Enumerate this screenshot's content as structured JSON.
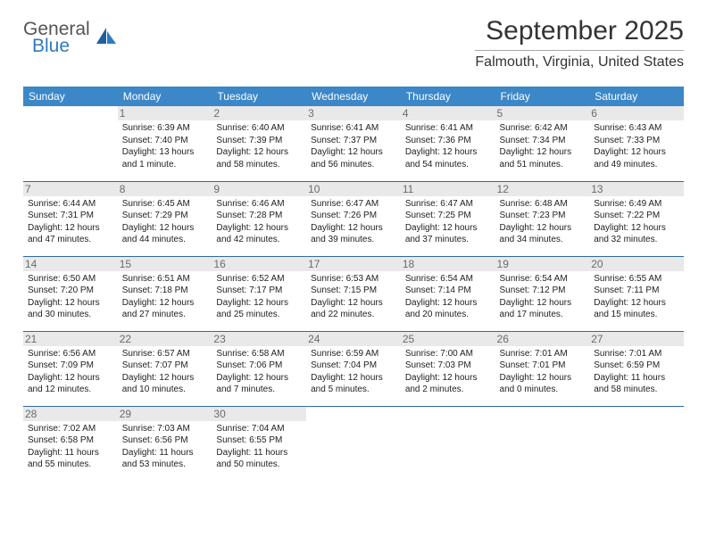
{
  "logo": {
    "general": "General",
    "blue": "Blue"
  },
  "header": {
    "title": "September 2025",
    "location": "Falmouth, Virginia, United States"
  },
  "colors": {
    "header_blue": "#3b87c8",
    "border_blue": "#2f6aa5",
    "daynum_bg": "#e9e9e9",
    "daynum_fg": "#6b6b6b",
    "logo_blue": "#2f7ac0",
    "logo_gray": "#555555"
  },
  "weekdays": [
    "Sunday",
    "Monday",
    "Tuesday",
    "Wednesday",
    "Thursday",
    "Friday",
    "Saturday"
  ],
  "blank_leading": 0,
  "days": [
    {
      "n": "",
      "sunrise": "",
      "sunset": "",
      "daylight": ""
    },
    {
      "n": "1",
      "sunrise": "Sunrise: 6:39 AM",
      "sunset": "Sunset: 7:40 PM",
      "daylight": "Daylight: 13 hours and 1 minute."
    },
    {
      "n": "2",
      "sunrise": "Sunrise: 6:40 AM",
      "sunset": "Sunset: 7:39 PM",
      "daylight": "Daylight: 12 hours and 58 minutes."
    },
    {
      "n": "3",
      "sunrise": "Sunrise: 6:41 AM",
      "sunset": "Sunset: 7:37 PM",
      "daylight": "Daylight: 12 hours and 56 minutes."
    },
    {
      "n": "4",
      "sunrise": "Sunrise: 6:41 AM",
      "sunset": "Sunset: 7:36 PM",
      "daylight": "Daylight: 12 hours and 54 minutes."
    },
    {
      "n": "5",
      "sunrise": "Sunrise: 6:42 AM",
      "sunset": "Sunset: 7:34 PM",
      "daylight": "Daylight: 12 hours and 51 minutes."
    },
    {
      "n": "6",
      "sunrise": "Sunrise: 6:43 AM",
      "sunset": "Sunset: 7:33 PM",
      "daylight": "Daylight: 12 hours and 49 minutes."
    },
    {
      "n": "7",
      "sunrise": "Sunrise: 6:44 AM",
      "sunset": "Sunset: 7:31 PM",
      "daylight": "Daylight: 12 hours and 47 minutes."
    },
    {
      "n": "8",
      "sunrise": "Sunrise: 6:45 AM",
      "sunset": "Sunset: 7:29 PM",
      "daylight": "Daylight: 12 hours and 44 minutes."
    },
    {
      "n": "9",
      "sunrise": "Sunrise: 6:46 AM",
      "sunset": "Sunset: 7:28 PM",
      "daylight": "Daylight: 12 hours and 42 minutes."
    },
    {
      "n": "10",
      "sunrise": "Sunrise: 6:47 AM",
      "sunset": "Sunset: 7:26 PM",
      "daylight": "Daylight: 12 hours and 39 minutes."
    },
    {
      "n": "11",
      "sunrise": "Sunrise: 6:47 AM",
      "sunset": "Sunset: 7:25 PM",
      "daylight": "Daylight: 12 hours and 37 minutes."
    },
    {
      "n": "12",
      "sunrise": "Sunrise: 6:48 AM",
      "sunset": "Sunset: 7:23 PM",
      "daylight": "Daylight: 12 hours and 34 minutes."
    },
    {
      "n": "13",
      "sunrise": "Sunrise: 6:49 AM",
      "sunset": "Sunset: 7:22 PM",
      "daylight": "Daylight: 12 hours and 32 minutes."
    },
    {
      "n": "14",
      "sunrise": "Sunrise: 6:50 AM",
      "sunset": "Sunset: 7:20 PM",
      "daylight": "Daylight: 12 hours and 30 minutes."
    },
    {
      "n": "15",
      "sunrise": "Sunrise: 6:51 AM",
      "sunset": "Sunset: 7:18 PM",
      "daylight": "Daylight: 12 hours and 27 minutes."
    },
    {
      "n": "16",
      "sunrise": "Sunrise: 6:52 AM",
      "sunset": "Sunset: 7:17 PM",
      "daylight": "Daylight: 12 hours and 25 minutes."
    },
    {
      "n": "17",
      "sunrise": "Sunrise: 6:53 AM",
      "sunset": "Sunset: 7:15 PM",
      "daylight": "Daylight: 12 hours and 22 minutes."
    },
    {
      "n": "18",
      "sunrise": "Sunrise: 6:54 AM",
      "sunset": "Sunset: 7:14 PM",
      "daylight": "Daylight: 12 hours and 20 minutes."
    },
    {
      "n": "19",
      "sunrise": "Sunrise: 6:54 AM",
      "sunset": "Sunset: 7:12 PM",
      "daylight": "Daylight: 12 hours and 17 minutes."
    },
    {
      "n": "20",
      "sunrise": "Sunrise: 6:55 AM",
      "sunset": "Sunset: 7:11 PM",
      "daylight": "Daylight: 12 hours and 15 minutes."
    },
    {
      "n": "21",
      "sunrise": "Sunrise: 6:56 AM",
      "sunset": "Sunset: 7:09 PM",
      "daylight": "Daylight: 12 hours and 12 minutes."
    },
    {
      "n": "22",
      "sunrise": "Sunrise: 6:57 AM",
      "sunset": "Sunset: 7:07 PM",
      "daylight": "Daylight: 12 hours and 10 minutes."
    },
    {
      "n": "23",
      "sunrise": "Sunrise: 6:58 AM",
      "sunset": "Sunset: 7:06 PM",
      "daylight": "Daylight: 12 hours and 7 minutes."
    },
    {
      "n": "24",
      "sunrise": "Sunrise: 6:59 AM",
      "sunset": "Sunset: 7:04 PM",
      "daylight": "Daylight: 12 hours and 5 minutes."
    },
    {
      "n": "25",
      "sunrise": "Sunrise: 7:00 AM",
      "sunset": "Sunset: 7:03 PM",
      "daylight": "Daylight: 12 hours and 2 minutes."
    },
    {
      "n": "26",
      "sunrise": "Sunrise: 7:01 AM",
      "sunset": "Sunset: 7:01 PM",
      "daylight": "Daylight: 12 hours and 0 minutes."
    },
    {
      "n": "27",
      "sunrise": "Sunrise: 7:01 AM",
      "sunset": "Sunset: 6:59 PM",
      "daylight": "Daylight: 11 hours and 58 minutes."
    },
    {
      "n": "28",
      "sunrise": "Sunrise: 7:02 AM",
      "sunset": "Sunset: 6:58 PM",
      "daylight": "Daylight: 11 hours and 55 minutes."
    },
    {
      "n": "29",
      "sunrise": "Sunrise: 7:03 AM",
      "sunset": "Sunset: 6:56 PM",
      "daylight": "Daylight: 11 hours and 53 minutes."
    },
    {
      "n": "30",
      "sunrise": "Sunrise: 7:04 AM",
      "sunset": "Sunset: 6:55 PM",
      "daylight": "Daylight: 11 hours and 50 minutes."
    }
  ]
}
